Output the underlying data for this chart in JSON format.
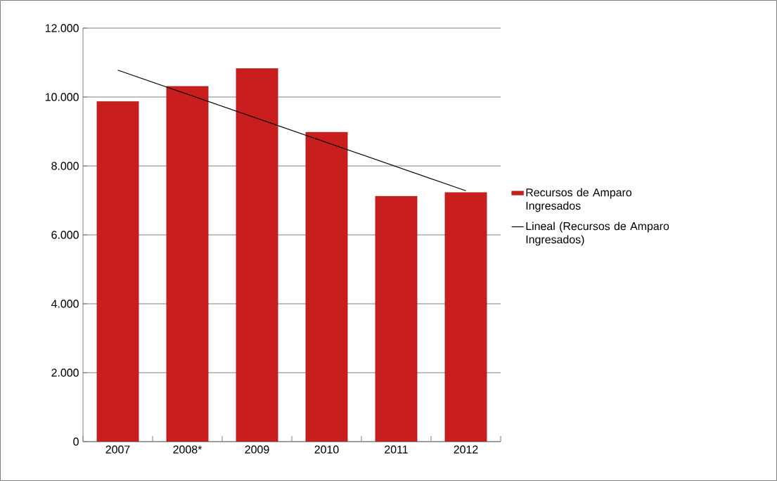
{
  "chart_data": {
    "type": "bar",
    "categories": [
      "2007",
      "2008*",
      "2009",
      "2010",
      "2011",
      "2012"
    ],
    "series": [
      {
        "name": "Recursos de Amparo Ingresados",
        "type": "bar",
        "color": "#c81e1e",
        "values": [
          9870,
          10310,
          10830,
          8980,
          7120,
          7230
        ]
      },
      {
        "name": "Lineal (Recursos de Amparo Ingresados)",
        "type": "line",
        "color": "#000000",
        "values": [
          10780,
          10080,
          9380,
          8680,
          7980,
          7280
        ]
      }
    ],
    "ylim": [
      0,
      12000
    ],
    "yticks": [
      {
        "value": 0,
        "label": "0"
      },
      {
        "value": 2000,
        "label": "2.000"
      },
      {
        "value": 4000,
        "label": "4.000"
      },
      {
        "value": 6000,
        "label": "6.000"
      },
      {
        "value": 8000,
        "label": "8.000"
      },
      {
        "value": 10000,
        "label": "10.000"
      },
      {
        "value": 12000,
        "label": "12.000"
      }
    ],
    "grid": "y",
    "legend": "right"
  }
}
